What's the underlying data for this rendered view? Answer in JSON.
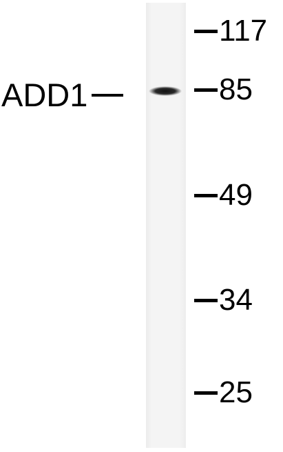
{
  "band": {
    "label": "ADD1"
  },
  "markers": [
    {
      "value": "117"
    },
    {
      "value": "85"
    },
    {
      "value": "49"
    },
    {
      "value": "34"
    },
    {
      "value": "25"
    }
  ],
  "colors": {
    "lane_background": "#f3f3f3",
    "band": "#1a1a1a",
    "text": "#000000"
  }
}
